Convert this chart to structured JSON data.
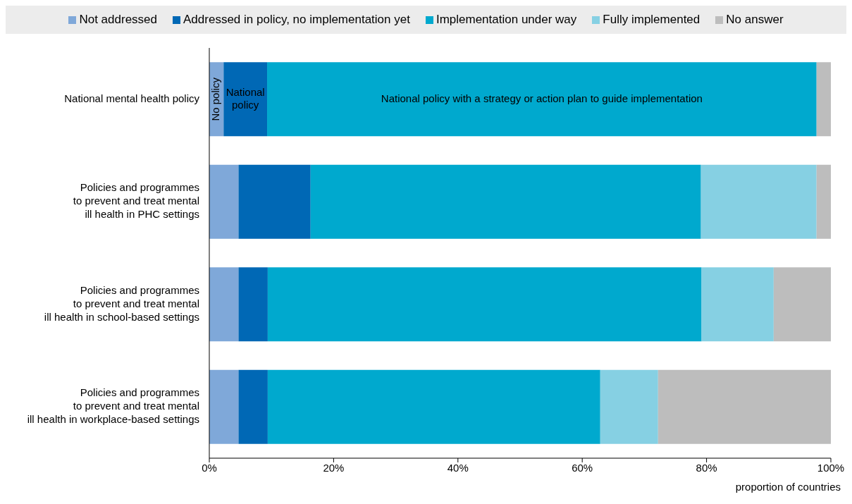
{
  "chart_data": {
    "type": "bar",
    "orientation": "horizontal",
    "stacked": true,
    "legend": "top",
    "categories": [
      "National mental health policy",
      "Policies and programmes\nto prevent and treat mental\nill health in PHC settings",
      "Policies and programmes\nto prevent and treat mental\nill health in school-based settings",
      "Policies and programmes\nto prevent and treat mental\nill health in workplace-based settings"
    ],
    "series": [
      {
        "name": "Not addressed",
        "color": "#7fa8d9",
        "values": [
          2.3,
          4.7,
          4.7,
          4.7
        ]
      },
      {
        "name": "Addressed in policy, no implementation yet",
        "color": "#0068b5",
        "values": [
          7.0,
          11.6,
          4.7,
          4.7
        ]
      },
      {
        "name": "Implementation under way",
        "color": "#00a9ce",
        "values": [
          88.4,
          62.8,
          69.8,
          53.5
        ]
      },
      {
        "name": "Fully implemented",
        "color": "#86d0e3",
        "values": [
          0,
          18.6,
          11.6,
          9.3
        ]
      },
      {
        "name": "No answer",
        "color": "#bdbdbd",
        "values": [
          2.3,
          2.3,
          9.3,
          27.9
        ]
      }
    ],
    "xlim": [
      0,
      100
    ],
    "xticks": [
      {
        "value": 0,
        "label": "0%"
      },
      {
        "value": 20,
        "label": "20%"
      },
      {
        "value": 40,
        "label": "40%"
      },
      {
        "value": 60,
        "label": "60%"
      },
      {
        "value": 80,
        "label": "80%"
      },
      {
        "value": 100,
        "label": "100%"
      }
    ],
    "xlabel": "proportion of countries",
    "grid": false,
    "annotations": [
      "No policy",
      "National policy",
      "National policy with a strategy or action plan to guide implementation"
    ]
  }
}
